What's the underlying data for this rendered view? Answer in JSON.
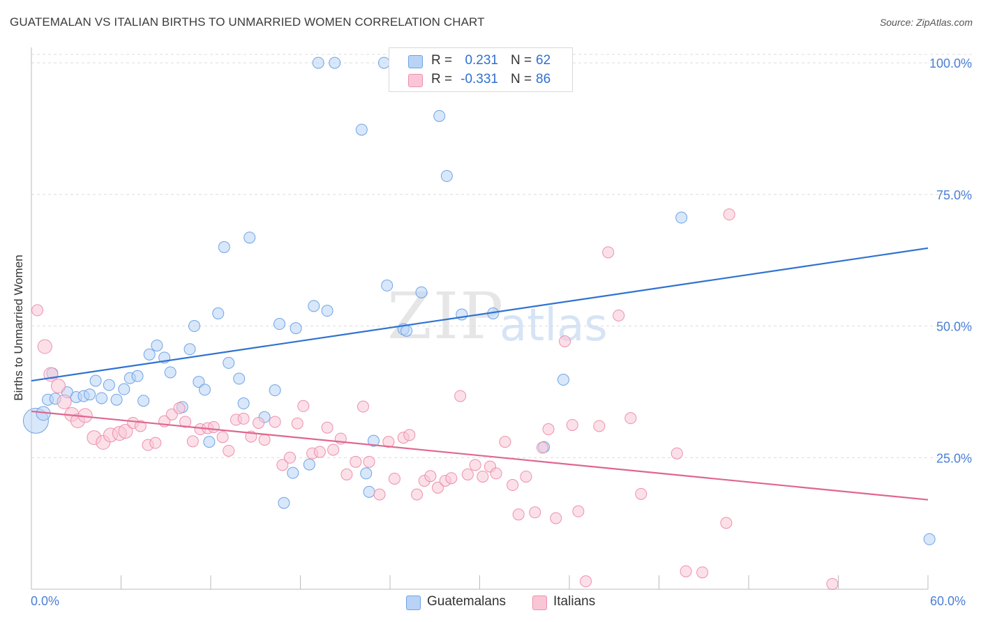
{
  "title": "GUATEMALAN VS ITALIAN BIRTHS TO UNMARRIED WOMEN CORRELATION CHART",
  "source": "Source: ZipAtlas.com",
  "watermark": {
    "zip": "ZIP",
    "atlas": "atlas"
  },
  "stats": [
    {
      "swatch_color": "#b8d3f5",
      "r_label": "R =",
      "r_value": "0.231",
      "n_label": "N =",
      "n_value": "62"
    },
    {
      "swatch_color": "#fac6d6",
      "r_label": "R =",
      "r_value": "-0.331",
      "n_label": "N =",
      "n_value": "86"
    }
  ],
  "legend": [
    {
      "label": "Guatemalans",
      "color": "#b8d3f5"
    },
    {
      "label": "Italians",
      "color": "#fac6d6"
    }
  ],
  "chart_data": {
    "type": "scatter",
    "title": "GUATEMALAN VS ITALIAN BIRTHS TO UNMARRIED WOMEN CORRELATION CHART",
    "xlabel": "",
    "ylabel": "Births to Unmarried Women",
    "xlim": [
      0,
      60
    ],
    "ylim": [
      0,
      102
    ],
    "x_tick_labels": [
      "0.0%",
      "60.0%"
    ],
    "y_ticks": [
      25,
      50,
      75,
      100
    ],
    "y_tick_labels": [
      "25.0%",
      "50.0%",
      "75.0%",
      "100.0%"
    ],
    "grid": true,
    "legend_position": "bottom",
    "series": [
      {
        "name": "Guatemalans",
        "color": "#6fa3e6",
        "fill": "#b8d3f5",
        "trend_color": "#2f72d0",
        "trend": [
          [
            0,
            39.6
          ],
          [
            60,
            64.8
          ]
        ],
        "points": [
          [
            0.3,
            32.0,
            18
          ],
          [
            0.8,
            33.4,
            10
          ],
          [
            1.1,
            36.0,
            8
          ],
          [
            1.4,
            41.0,
            8
          ],
          [
            1.6,
            36.2,
            8
          ],
          [
            2.4,
            37.4,
            8
          ],
          [
            3.0,
            36.5,
            8
          ],
          [
            3.5,
            36.7,
            8
          ],
          [
            3.9,
            37.0,
            8
          ],
          [
            4.3,
            39.6,
            8
          ],
          [
            4.7,
            36.3,
            8
          ],
          [
            5.2,
            38.8,
            8
          ],
          [
            5.7,
            36.0,
            8
          ],
          [
            6.2,
            38.0,
            8
          ],
          [
            6.6,
            40.1,
            8
          ],
          [
            7.1,
            40.5,
            8
          ],
          [
            7.5,
            35.8,
            8
          ],
          [
            7.9,
            44.6,
            8
          ],
          [
            8.4,
            46.3,
            8
          ],
          [
            8.9,
            44.0,
            8
          ],
          [
            9.3,
            41.2,
            8
          ],
          [
            10.1,
            34.6,
            8
          ],
          [
            10.6,
            45.6,
            8
          ],
          [
            10.9,
            50.0,
            8
          ],
          [
            11.2,
            39.4,
            8
          ],
          [
            11.6,
            37.9,
            8
          ],
          [
            11.9,
            28.0,
            8
          ],
          [
            12.5,
            52.4,
            8
          ],
          [
            12.9,
            65.0,
            8
          ],
          [
            13.2,
            43.0,
            8
          ],
          [
            13.9,
            40.0,
            8
          ],
          [
            14.2,
            35.3,
            8
          ],
          [
            14.6,
            66.8,
            8
          ],
          [
            15.6,
            32.7,
            8
          ],
          [
            16.3,
            37.8,
            8
          ],
          [
            16.6,
            50.4,
            8
          ],
          [
            16.9,
            16.4,
            8
          ],
          [
            17.5,
            22.1,
            8
          ],
          [
            17.7,
            49.6,
            8
          ],
          [
            18.6,
            23.7,
            8
          ],
          [
            18.9,
            53.8,
            8
          ],
          [
            19.2,
            100.0,
            8
          ],
          [
            19.8,
            52.9,
            8
          ],
          [
            20.3,
            100.0,
            8
          ],
          [
            22.1,
            87.3,
            8
          ],
          [
            22.4,
            22.0,
            8
          ],
          [
            22.6,
            18.5,
            8
          ],
          [
            22.9,
            28.2,
            8
          ],
          [
            23.6,
            100.0,
            8
          ],
          [
            23.8,
            57.7,
            8
          ],
          [
            24.9,
            49.4,
            8
          ],
          [
            25.1,
            49.1,
            8
          ],
          [
            26.1,
            56.4,
            8
          ],
          [
            27.3,
            89.9,
            8
          ],
          [
            27.8,
            78.5,
            8
          ],
          [
            28.8,
            52.2,
            8
          ],
          [
            30.9,
            52.4,
            8
          ],
          [
            34.3,
            27.0,
            8
          ],
          [
            35.6,
            39.8,
            8
          ],
          [
            43.5,
            70.6,
            8
          ],
          [
            60.1,
            9.5,
            8
          ],
          [
            31.0,
            100.0,
            8
          ]
        ]
      },
      {
        "name": "Italians",
        "color": "#ec8fae",
        "fill": "#fac6d6",
        "trend_color": "#e0668f",
        "trend": [
          [
            0,
            33.8
          ],
          [
            60,
            17.0
          ]
        ],
        "points": [
          [
            0.4,
            53.0,
            8
          ],
          [
            0.9,
            46.1,
            10
          ],
          [
            1.3,
            40.8,
            10
          ],
          [
            1.8,
            38.6,
            10
          ],
          [
            2.2,
            35.6,
            10
          ],
          [
            2.7,
            33.2,
            10
          ],
          [
            3.1,
            32.0,
            10
          ],
          [
            3.6,
            33.0,
            10
          ],
          [
            4.2,
            28.8,
            10
          ],
          [
            4.8,
            27.9,
            10
          ],
          [
            5.3,
            29.3,
            10
          ],
          [
            5.9,
            29.6,
            10
          ],
          [
            6.3,
            30.0,
            10
          ],
          [
            6.8,
            31.6,
            8
          ],
          [
            7.3,
            31.0,
            8
          ],
          [
            7.8,
            27.4,
            8
          ],
          [
            8.3,
            27.8,
            8
          ],
          [
            8.9,
            31.9,
            8
          ],
          [
            9.4,
            33.2,
            8
          ],
          [
            9.9,
            34.4,
            8
          ],
          [
            10.3,
            31.8,
            8
          ],
          [
            10.8,
            28.1,
            8
          ],
          [
            11.3,
            30.4,
            8
          ],
          [
            11.8,
            30.6,
            8
          ],
          [
            12.2,
            30.8,
            8
          ],
          [
            12.8,
            28.9,
            8
          ],
          [
            13.2,
            26.3,
            8
          ],
          [
            13.7,
            32.2,
            8
          ],
          [
            14.2,
            32.4,
            8
          ],
          [
            14.7,
            29.0,
            8
          ],
          [
            15.2,
            31.6,
            8
          ],
          [
            15.6,
            28.4,
            8
          ],
          [
            16.3,
            31.8,
            8
          ],
          [
            16.8,
            23.6,
            8
          ],
          [
            17.3,
            25.0,
            8
          ],
          [
            17.8,
            31.5,
            8
          ],
          [
            18.2,
            34.8,
            8
          ],
          [
            18.8,
            25.8,
            8
          ],
          [
            19.3,
            26.1,
            8
          ],
          [
            19.8,
            30.7,
            8
          ],
          [
            20.2,
            26.5,
            8
          ],
          [
            20.7,
            28.6,
            8
          ],
          [
            21.1,
            21.8,
            8
          ],
          [
            21.7,
            24.2,
            8
          ],
          [
            22.2,
            34.7,
            8
          ],
          [
            22.6,
            24.2,
            8
          ],
          [
            23.3,
            18.0,
            8
          ],
          [
            23.9,
            28.0,
            8
          ],
          [
            24.3,
            21.0,
            8
          ],
          [
            24.9,
            28.8,
            8
          ],
          [
            25.3,
            29.3,
            8
          ],
          [
            25.8,
            18.0,
            8
          ],
          [
            26.3,
            20.6,
            8
          ],
          [
            26.7,
            21.5,
            8
          ],
          [
            27.2,
            19.3,
            8
          ],
          [
            27.7,
            20.6,
            8
          ],
          [
            28.1,
            21.1,
            8
          ],
          [
            28.7,
            36.7,
            8
          ],
          [
            29.2,
            21.8,
            8
          ],
          [
            29.7,
            23.6,
            8
          ],
          [
            30.2,
            21.4,
            8
          ],
          [
            30.7,
            23.3,
            8
          ],
          [
            31.1,
            22.0,
            8
          ],
          [
            31.7,
            28.0,
            8
          ],
          [
            32.2,
            19.8,
            8
          ],
          [
            32.6,
            14.2,
            8
          ],
          [
            33.1,
            21.4,
            8
          ],
          [
            33.7,
            14.6,
            8
          ],
          [
            34.2,
            26.9,
            8
          ],
          [
            34.6,
            30.4,
            8
          ],
          [
            35.1,
            13.5,
            8
          ],
          [
            35.7,
            47.1,
            8
          ],
          [
            36.2,
            31.2,
            8
          ],
          [
            36.6,
            14.8,
            8
          ],
          [
            37.1,
            1.5,
            8
          ],
          [
            38.0,
            31.0,
            8
          ],
          [
            38.6,
            64.0,
            8
          ],
          [
            39.3,
            52.0,
            8
          ],
          [
            40.1,
            32.5,
            8
          ],
          [
            40.8,
            18.1,
            8
          ],
          [
            43.2,
            25.8,
            8
          ],
          [
            43.8,
            3.4,
            8
          ],
          [
            44.9,
            3.2,
            8
          ],
          [
            46.5,
            12.6,
            8
          ],
          [
            46.7,
            71.2,
            8
          ],
          [
            53.6,
            1.0,
            8
          ]
        ]
      }
    ]
  }
}
